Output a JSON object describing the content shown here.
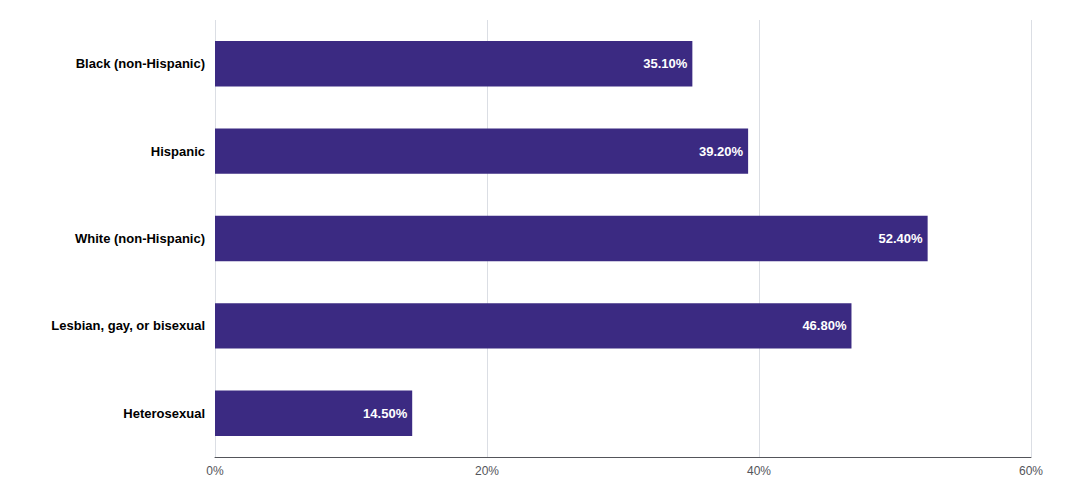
{
  "chart_data": {
    "type": "bar",
    "orientation": "horizontal",
    "categories": [
      "Black (non-Hispanic)",
      "Hispanic",
      "White (non-Hispanic)",
      "Lesbian, gay, or bisexual",
      "Heterosexual"
    ],
    "values": [
      35.1,
      39.2,
      52.4,
      46.8,
      14.5
    ],
    "value_labels": [
      "35.10%",
      "39.20%",
      "52.40%",
      "46.80%",
      "14.50%"
    ],
    "data_labels": true,
    "color": "#3b2a82",
    "xlim": [
      0,
      60
    ],
    "xticks": [
      {
        "value": 0,
        "label": "0%"
      },
      {
        "value": 20,
        "label": "20%"
      },
      {
        "value": 40,
        "label": "40%"
      },
      {
        "value": 60,
        "label": "60%"
      }
    ],
    "grid": true
  }
}
